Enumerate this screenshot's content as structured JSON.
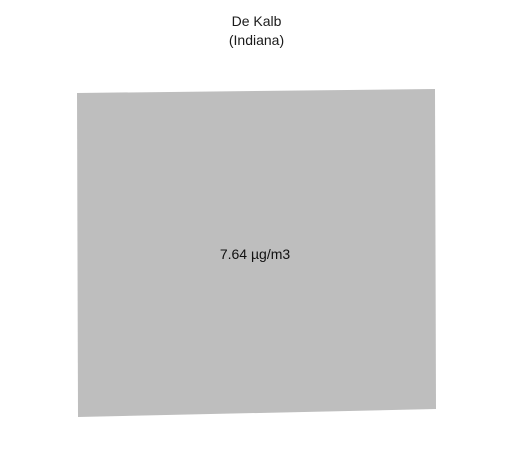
{
  "map": {
    "title_line1": "De Kalb",
    "title_line2": "(Indiana)",
    "region": {
      "name": "De Kalb",
      "fill_color": "#bebebe",
      "value_label": "7.64 µg/m3"
    }
  }
}
